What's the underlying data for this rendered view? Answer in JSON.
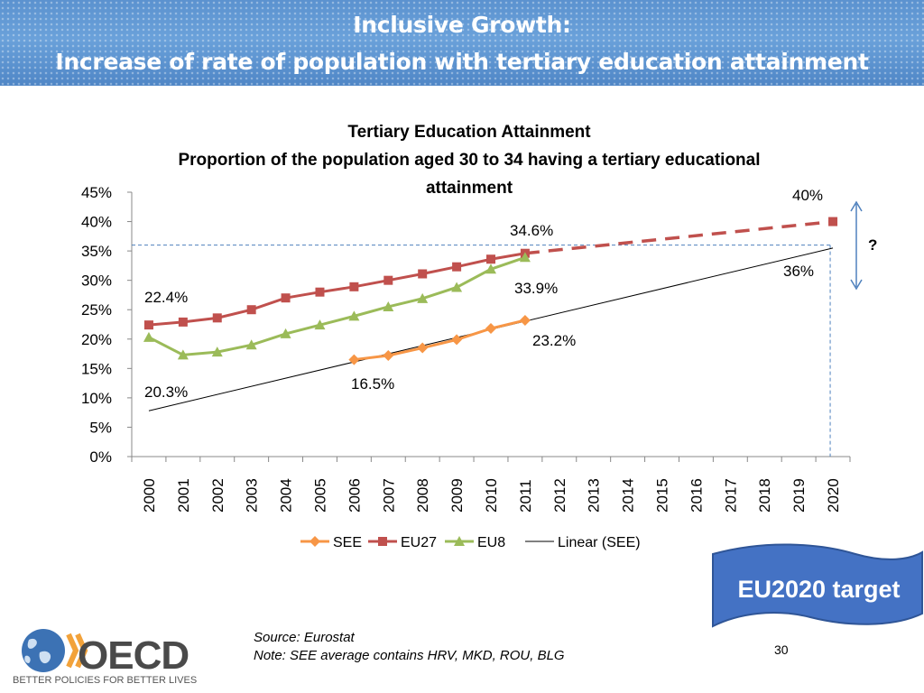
{
  "header": {
    "line1": "Inclusive Growth:",
    "line2": "Increase of rate of population with tertiary education attainment"
  },
  "chart_data": {
    "type": "line",
    "title": [
      "Tertiary Education Attainment",
      "Proportion of the population aged 30 to 34 having a tertiary educational",
      "attainment"
    ],
    "categories": [
      "2000",
      "2001",
      "2002",
      "2003",
      "2004",
      "2005",
      "2006",
      "2007",
      "2008",
      "2009",
      "2010",
      "2011",
      "2012",
      "2013",
      "2014",
      "2015",
      "2016",
      "2017",
      "2018",
      "2019",
      "2020"
    ],
    "y_ticks": [
      "0%",
      "5%",
      "10%",
      "15%",
      "20%",
      "25%",
      "30%",
      "35%",
      "40%",
      "45%"
    ],
    "ylim": [
      0,
      45
    ],
    "series": [
      {
        "name": "SEE",
        "color": "#f79646",
        "marker": "diamond",
        "values": [
          null,
          null,
          null,
          null,
          null,
          null,
          16.5,
          17.2,
          18.5,
          19.9,
          21.8,
          23.2,
          null,
          null,
          null,
          null,
          null,
          null,
          null,
          null,
          null
        ]
      },
      {
        "name": "EU27",
        "color": "#c0504d",
        "marker": "square",
        "values": [
          22.4,
          22.9,
          23.6,
          25.0,
          27.0,
          28.0,
          28.9,
          30.0,
          31.1,
          32.3,
          33.6,
          34.6,
          null,
          null,
          null,
          null,
          null,
          null,
          null,
          null,
          null
        ]
      },
      {
        "name": "EU8",
        "color": "#9bbb59",
        "marker": "triangle",
        "values": [
          20.3,
          17.3,
          17.8,
          19.0,
          20.9,
          22.4,
          23.9,
          25.5,
          26.9,
          28.8,
          31.9,
          33.9,
          null,
          null,
          null,
          null,
          null,
          null,
          null,
          null,
          null
        ]
      }
    ],
    "target_line": {
      "color": "#c0504d",
      "from": [
        "2011",
        34.6
      ],
      "to": [
        "2020",
        40
      ]
    },
    "trendline": {
      "name": "Linear (SEE)",
      "color": "#000000",
      "from": [
        "2000",
        7.8
      ],
      "to": [
        "2020",
        35.5
      ]
    },
    "reference_line": {
      "color": "#4f81bd",
      "y": 36,
      "x": "2020"
    },
    "annotations": {
      "eu27_2000": "22.4%",
      "eu8_2000": "20.3%",
      "eu27_2011": "34.6%",
      "eu8_2011": "33.9%",
      "see_2011": "23.2%",
      "see_2006": "16.5%",
      "target_2020": "40%",
      "trend_2020": "36%",
      "question": "?"
    },
    "legend_placement": "bottom",
    "grid": false
  },
  "banner": {
    "text": "EU2020 target",
    "color": "#4472c4"
  },
  "footer": {
    "source": "Source: Eurostat",
    "note": "Note: SEE average contains HRV, MKD, ROU, BLG",
    "page_number": "30"
  },
  "logo": {
    "name": "OECD",
    "tagline": "BETTER POLICIES FOR BETTER LIVES",
    "icon": "globe-icon"
  }
}
